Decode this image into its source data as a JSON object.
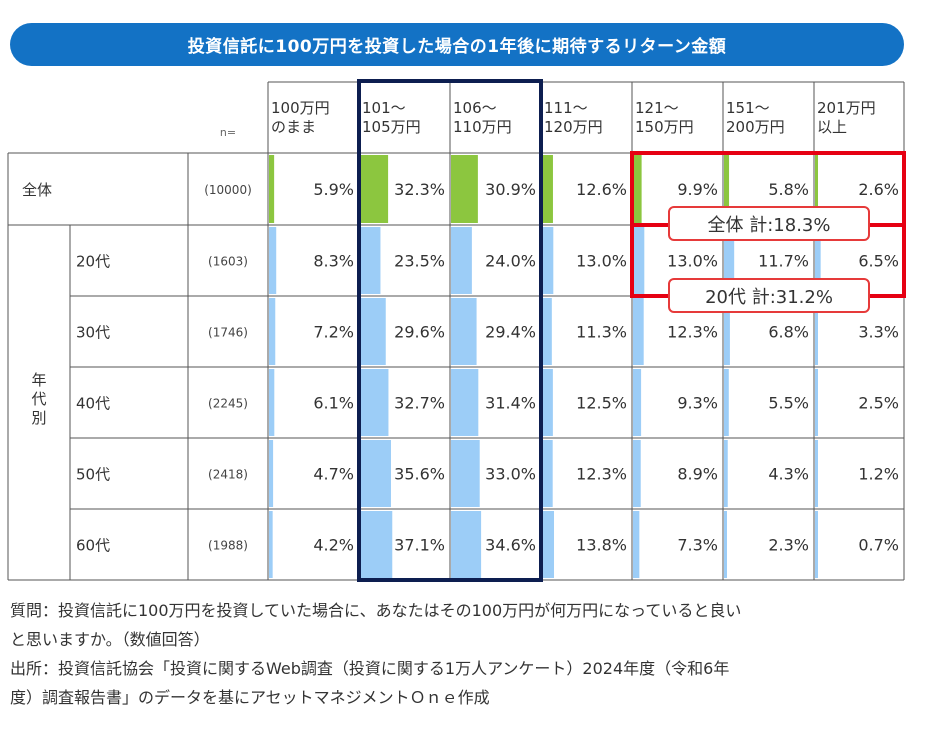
{
  "title": "投資信託に100万円を投資した場合の1年後に期待するリターン金額",
  "n_label": "n=",
  "overall_label": "全体",
  "age_group_label": "年\n代\n別",
  "chart_data": {
    "type": "table",
    "columns": [
      "100万円\nのまま",
      "101～\n105万円",
      "106～\n110万円",
      "111～\n120万円",
      "121～\n150万円",
      "151～\n200万円",
      "201万円\n以上"
    ],
    "rows": [
      {
        "label": "全体",
        "n": "(10000)",
        "values": [
          5.9,
          32.3,
          30.9,
          12.6,
          9.9,
          5.8,
          2.6
        ],
        "labels": [
          "5.9%",
          "32.3%",
          "30.9%",
          "12.6%",
          "9.9%",
          "5.8%",
          "2.6%"
        ]
      },
      {
        "label": "20代",
        "n": "(1603)",
        "values": [
          8.3,
          23.5,
          24.0,
          13.0,
          13.0,
          11.7,
          6.5
        ],
        "labels": [
          "8.3%",
          "23.5%",
          "24.0%",
          "13.0%",
          "13.0%",
          "11.7%",
          "6.5%"
        ]
      },
      {
        "label": "30代",
        "n": "(1746)",
        "values": [
          7.2,
          29.6,
          29.4,
          11.3,
          12.3,
          6.8,
          3.3
        ],
        "labels": [
          "7.2%",
          "29.6%",
          "29.4%",
          "11.3%",
          "12.3%",
          "6.8%",
          "3.3%"
        ]
      },
      {
        "label": "40代",
        "n": "(2245)",
        "values": [
          6.1,
          32.7,
          31.4,
          12.5,
          9.3,
          5.5,
          2.5
        ],
        "labels": [
          "6.1%",
          "32.7%",
          "31.4%",
          "12.5%",
          "9.3%",
          "5.5%",
          "2.5%"
        ]
      },
      {
        "label": "50代",
        "n": "(2418)",
        "values": [
          4.7,
          35.6,
          33.0,
          12.3,
          8.9,
          4.3,
          1.2
        ],
        "labels": [
          "4.7%",
          "35.6%",
          "33.0%",
          "12.3%",
          "8.9%",
          "4.3%",
          "1.2%"
        ]
      },
      {
        "label": "60代",
        "n": "(1988)",
        "values": [
          4.2,
          37.1,
          34.6,
          13.8,
          7.3,
          2.3,
          0.7
        ],
        "labels": [
          "4.2%",
          "37.1%",
          "34.6%",
          "13.8%",
          "7.3%",
          "2.3%",
          "0.7%"
        ]
      }
    ],
    "bar_max": 100,
    "colors": {
      "overall_bar": "#8cc63f",
      "age_bar": "#9ccdf7",
      "highlight_col": "#0d1e50",
      "highlight_box": "#e60012"
    },
    "callouts": [
      "全体 計:18.3%",
      "20代 計:31.2%"
    ]
  },
  "footer": {
    "line1": "質問：投資信託に100万円を投資していた場合に、あなたはその100万円が何万円になっていると良い",
    "line2": "と思いますか。（数値回答）",
    "line3": "出所：投資信託協会「投資に関するWeb調査（投資に関する1万人アンケート）2024年度（令和6年",
    "line4": "度）調査報告書」のデータを基にアセットマネジメントＯｎｅ作成"
  }
}
